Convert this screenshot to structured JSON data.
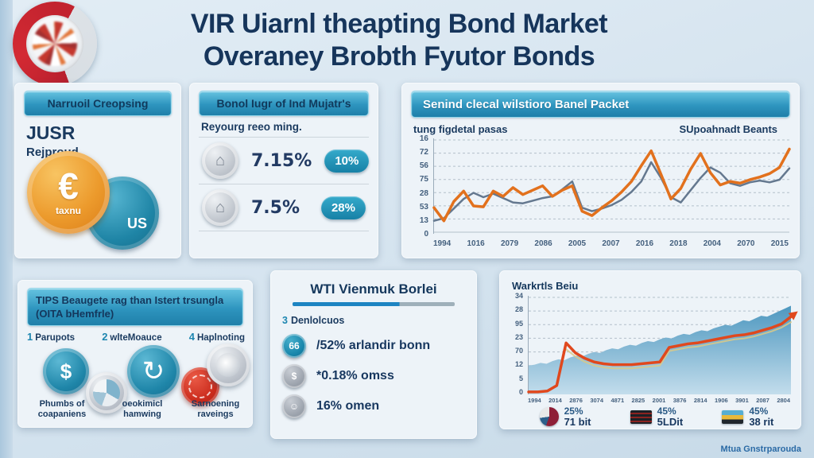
{
  "title": {
    "line1": "VIR Uiarnl theapting Bond Market",
    "line2": "Overaney Brobth Fyutor Bonds"
  },
  "panel_currencies": {
    "header": "Narruoil Creopsing",
    "code": "JUSR",
    "code_sub": "Rejproud",
    "euro_symbol": "€",
    "euro_caption": "taxnu",
    "us_label": "US"
  },
  "panel_rates": {
    "header": "Bonol Iugr of Ind Mujatr's",
    "subtitle": "Reyourg reeo ming.",
    "rows": [
      {
        "value": "7.15%",
        "badge": "10%"
      },
      {
        "value": "7.5%",
        "badge": "28%"
      }
    ]
  },
  "panel_line_chart": {
    "label_left": "tung figdetal pasas",
    "label_right": "SUpoahnadt Beants"
  },
  "panel_tips": {
    "header_line1": "TIPS Beaugete rag than Istert trsungla",
    "header_line2": "(OITA bHemfrle)",
    "steps": [
      {
        "num": "1",
        "label": "Parupots"
      },
      {
        "num": "2",
        "label": "wlteMoauce"
      },
      {
        "num": "4",
        "label": "Haplnoting"
      }
    ],
    "icon_glyphs": {
      "dollar": "$",
      "refresh": "↻"
    },
    "captions": [
      {
        "line1": "Phumbs of",
        "line2": "coapaniens"
      },
      {
        "line1": "oeokimicl",
        "line2": "hamwing"
      },
      {
        "line1": "Sarnoening",
        "line2": "raveings"
      }
    ]
  },
  "panel_wti": {
    "title": "WTI Vienmuk Borlei",
    "sub_num": "3",
    "sub_label": "Denlolcuos",
    "stats": [
      {
        "badge": "66",
        "text": "/52% arlandir bonn"
      },
      {
        "badge": "$",
        "text": "*0.18% omss"
      },
      {
        "badge": "☺",
        "text": "16% omen"
      }
    ]
  },
  "panel_area_chart": {
    "legend": [
      {
        "pct": "25%",
        "label": "71 bit"
      },
      {
        "pct": "45%",
        "label": "5LDit"
      },
      {
        "pct": "45%",
        "label": "38 rit"
      }
    ]
  },
  "footer": "Mtua Gnstrparouda",
  "colors": {
    "navy": "#16355b",
    "teal": "#2a90ba",
    "orange": "#e2711d",
    "steel": "#64788f",
    "area_blue": "#4d97bf",
    "red_accent": "#c2251f"
  },
  "chart_data": [
    {
      "type": "line",
      "title": "Senind clecal wilstioro Banel Packet",
      "xlabel": "",
      "ylabel": "",
      "ylim": [
        0,
        100
      ],
      "grid": "horizontal-dashed",
      "legend_position": "none",
      "x_ticks": [
        "1994",
        "1016",
        "2079",
        "2086",
        "2005",
        "2007",
        "2016",
        "2018",
        "2004",
        "2070",
        "2015"
      ],
      "y_ticks": [
        "16",
        "72",
        "56",
        "75",
        "28",
        "53",
        "13",
        "0"
      ],
      "series": [
        {
          "name": "steel-line",
          "color": "#64788f",
          "width": 2.5,
          "values": [
            13,
            16,
            27,
            38,
            45,
            40,
            44,
            39,
            34,
            33,
            36,
            39,
            41,
            49,
            58,
            28,
            24,
            27,
            31,
            37,
            46,
            58,
            80,
            62,
            40,
            34,
            48,
            62,
            74,
            68,
            56,
            53,
            57,
            59,
            57,
            60,
            73
          ]
        },
        {
          "name": "orange-line",
          "color": "#e2711d",
          "width": 3.5,
          "values": [
            28,
            13,
            35,
            47,
            30,
            29,
            47,
            41,
            51,
            43,
            48,
            53,
            41,
            48,
            53,
            24,
            19,
            28,
            36,
            46,
            58,
            76,
            93,
            66,
            38,
            50,
            72,
            90,
            68,
            54,
            58,
            56,
            60,
            63,
            67,
            74,
            95
          ]
        }
      ]
    },
    {
      "type": "area",
      "title": "Warkrtls Beiu",
      "xlabel": "",
      "ylabel": "",
      "ylim": [
        0,
        100
      ],
      "grid": "horizontal-dashed",
      "x_ticks": [
        "1994",
        "2014",
        "2876",
        "3074",
        "4871",
        "2825",
        "2001",
        "3876",
        "2814",
        "1906",
        "3901",
        "2087",
        "2804"
      ],
      "y_ticks": [
        "34",
        "28",
        "95",
        "23",
        "70",
        "12",
        "5",
        "0"
      ],
      "series": [
        {
          "name": "volume-area",
          "type": "area",
          "color_top": "#4d97bf",
          "color_bottom": "#c3ddec",
          "values": [
            30,
            31,
            33,
            32,
            35,
            37,
            36,
            39,
            41,
            40,
            43,
            45,
            44,
            47,
            49,
            48,
            51,
            53,
            52,
            55,
            57,
            56,
            59,
            61,
            60,
            63,
            65,
            64,
            67,
            69,
            68,
            71,
            73,
            75,
            74,
            77,
            80,
            79,
            82,
            85,
            84,
            87,
            90,
            93,
            96
          ]
        },
        {
          "name": "soft-trend",
          "type": "line",
          "color": "#d9c988",
          "width": 2,
          "opacity": 0.85,
          "values": [
            null,
            null,
            null,
            null,
            48,
            40,
            34,
            30,
            28,
            27,
            27,
            27,
            28,
            29,
            30,
            46,
            48,
            50,
            51,
            53,
            55,
            57,
            59,
            60,
            62,
            65,
            68,
            72,
            78
          ]
        },
        {
          "name": "growth-trend",
          "type": "line",
          "color": "#e0481d",
          "width": 3.5,
          "arrow": true,
          "values": [
            1,
            1,
            2,
            8,
            55,
            44,
            38,
            34,
            32,
            31,
            31,
            31,
            32,
            33,
            34,
            50,
            52,
            54,
            55,
            57,
            59,
            61,
            63,
            64,
            66,
            69,
            72,
            76,
            84
          ]
        }
      ]
    }
  ]
}
